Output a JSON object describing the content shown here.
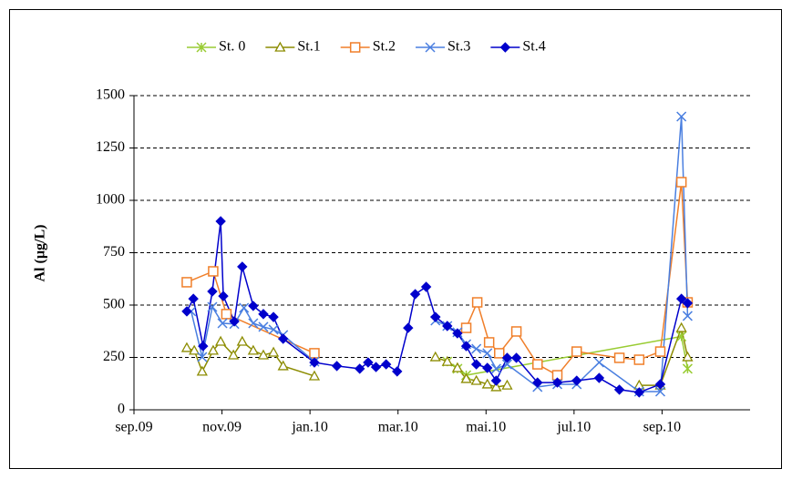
{
  "chart_data": {
    "type": "line",
    "y_label": "Al (µg/L)",
    "xlim": [
      0,
      14
    ],
    "xticks": [
      {
        "value": 0,
        "label": "sep.09"
      },
      {
        "value": 2,
        "label": "nov.09"
      },
      {
        "value": 4,
        "label": "jan.10"
      },
      {
        "value": 6,
        "label": "mar.10"
      },
      {
        "value": 8,
        "label": "mai.10"
      },
      {
        "value": 10,
        "label": "jul.10"
      },
      {
        "value": 12,
        "label": "sep.10"
      }
    ],
    "ylim": [
      0,
      1500
    ],
    "yticks": [
      0,
      250,
      500,
      750,
      1000,
      1250,
      1500
    ],
    "grid": true,
    "legend": "top",
    "series": [
      {
        "name": "St. 0",
        "color": "#99cc33",
        "marker": "asterisk",
        "x": [
          7.12,
          7.35,
          7.55,
          12.44,
          12.58
        ],
        "values": [
          230,
          196,
          165,
          350,
          196
        ]
      },
      {
        "name": "St.1",
        "color": "#8c8c00",
        "marker": "triangle",
        "x": [
          1.2,
          1.37,
          1.55,
          1.8,
          1.97,
          2.26,
          2.46,
          2.71,
          2.94,
          3.17,
          3.39,
          4.1,
          5.5,
          6.85,
          7.12,
          7.35,
          7.55,
          7.78,
          8.03,
          8.23,
          8.48,
          10.0,
          11.48,
          11.96,
          12.44,
          12.58
        ],
        "values": [
          296,
          283,
          183,
          283,
          326,
          261,
          326,
          283,
          261,
          274,
          209,
          161,
          null,
          252,
          230,
          200,
          148,
          139,
          122,
          109,
          117,
          null,
          117,
          117,
          391,
          252
        ]
      },
      {
        "name": "St.2",
        "color": "#f07f2a",
        "marker": "square",
        "x": [
          1.2,
          1.8,
          2.1,
          4.1,
          5.5,
          7.55,
          7.8,
          8.07,
          8.3,
          8.69,
          9.17,
          9.62,
          10.06,
          11.03,
          11.48,
          11.96,
          12.44,
          12.58
        ],
        "values": [
          609,
          661,
          457,
          270,
          null,
          391,
          513,
          322,
          270,
          374,
          217,
          165,
          278,
          248,
          239,
          278,
          1087,
          513
        ]
      },
      {
        "name": "St.3",
        "color": "#4a7fe0",
        "marker": "x",
        "x": [
          1.3,
          1.55,
          1.78,
          2.01,
          2.28,
          2.5,
          2.71,
          2.94,
          3.17,
          3.39,
          4.1,
          5.5,
          6.85,
          7.12,
          7.35,
          7.55,
          7.78,
          8.03,
          8.23,
          8.48,
          9.17,
          9.62,
          10.06,
          10.57,
          11.48,
          11.96,
          12.44,
          12.58
        ],
        "values": [
          470,
          252,
          491,
          413,
          410,
          487,
          413,
          396,
          383,
          357,
          230,
          null,
          426,
          400,
          370,
          313,
          291,
          270,
          196,
          217,
          109,
          122,
          122,
          226,
          87,
          87,
          1400,
          448
        ]
      },
      {
        "name": "St.4",
        "color": "#0000cc",
        "marker": "diamond",
        "x": [
          1.2,
          1.35,
          1.57,
          1.78,
          1.97,
          2.03,
          2.28,
          2.46,
          2.71,
          2.94,
          3.17,
          3.39,
          4.1,
          4.61,
          5.13,
          5.32,
          5.5,
          5.73,
          5.98,
          6.23,
          6.39,
          6.64,
          6.85,
          7.12,
          7.35,
          7.55,
          7.78,
          8.03,
          8.23,
          8.48,
          8.69,
          9.17,
          9.62,
          10.06,
          10.57,
          11.03,
          11.48,
          11.96,
          12.44,
          12.58
        ],
        "values": [
          470,
          530,
          304,
          565,
          900,
          543,
          422,
          683,
          496,
          457,
          443,
          339,
          226,
          209,
          196,
          226,
          204,
          217,
          183,
          391,
          552,
          587,
          443,
          400,
          365,
          304,
          217,
          200,
          139,
          248,
          248,
          130,
          130,
          139,
          152,
          96,
          83,
          122,
          530,
          509
        ]
      }
    ]
  }
}
